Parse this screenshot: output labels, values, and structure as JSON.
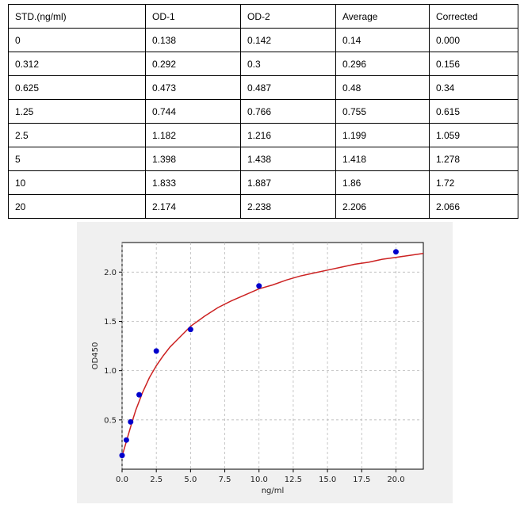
{
  "table": {
    "headers": [
      "STD.(ng/ml)",
      "OD-1",
      "OD-2",
      "Average",
      "Corrected"
    ],
    "rows": [
      [
        "0",
        "0.138",
        "0.142",
        "0.14",
        "0.000"
      ],
      [
        "0.312",
        "0.292",
        "0.3",
        "0.296",
        "0.156"
      ],
      [
        "0.625",
        "0.473",
        "0.487",
        "0.48",
        "0.34"
      ],
      [
        "1.25",
        "0.744",
        "0.766",
        "0.755",
        "0.615"
      ],
      [
        "2.5",
        "1.182",
        "1.216",
        "1.199",
        "1.059"
      ],
      [
        "5",
        "1.398",
        "1.438",
        "1.418",
        "1.278"
      ],
      [
        "10",
        "1.833",
        "1.887",
        "1.86",
        "1.72"
      ],
      [
        "20",
        "2.174",
        "2.238",
        "2.206",
        "2.066"
      ]
    ]
  },
  "chart_data": {
    "type": "scatter",
    "xlabel": "ng/ml",
    "ylabel": "OD450",
    "xlim": [
      0,
      22
    ],
    "ylim": [
      0.0,
      2.3
    ],
    "xticks": [
      "0.0",
      "2.5",
      "5.0",
      "7.5",
      "10.0",
      "12.5",
      "15.0",
      "17.5",
      "20.0"
    ],
    "yticks": [
      "0.5",
      "1.0",
      "1.5",
      "2.0"
    ],
    "grid": true,
    "points": {
      "x": [
        0,
        0.312,
        0.625,
        1.25,
        2.5,
        5,
        10,
        20
      ],
      "y": [
        0.14,
        0.296,
        0.48,
        0.755,
        1.199,
        1.418,
        1.86,
        2.206
      ],
      "color": "#0000cc"
    },
    "fit_curve": {
      "color": "#cc2222",
      "x": [
        0,
        0.1,
        0.25,
        0.5,
        0.75,
        1,
        1.5,
        2,
        2.5,
        3,
        3.5,
        4,
        5,
        6,
        7,
        8,
        9,
        10,
        11,
        12,
        13,
        14,
        15,
        16,
        17,
        18,
        19,
        20,
        21,
        22
      ],
      "y": [
        0.14,
        0.18,
        0.25,
        0.37,
        0.49,
        0.6,
        0.78,
        0.93,
        1.05,
        1.15,
        1.24,
        1.31,
        1.45,
        1.55,
        1.64,
        1.71,
        1.77,
        1.83,
        1.87,
        1.92,
        1.96,
        1.99,
        2.02,
        2.05,
        2.08,
        2.1,
        2.13,
        2.15,
        2.17,
        2.19
      ]
    }
  }
}
